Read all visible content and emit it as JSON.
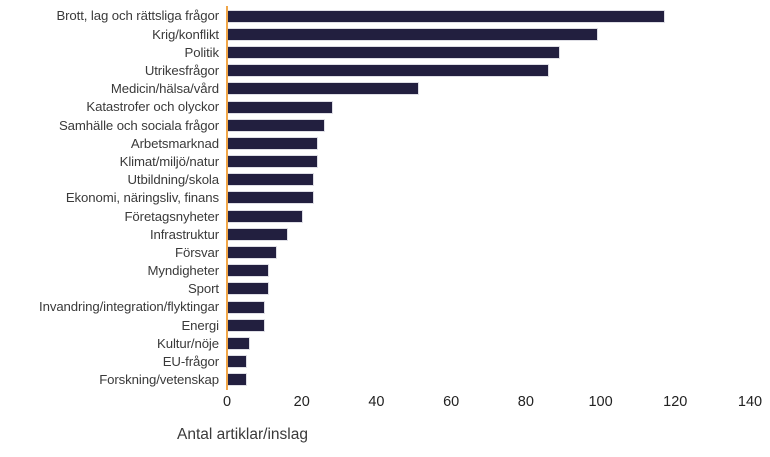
{
  "chart_data": {
    "type": "bar",
    "orientation": "horizontal",
    "title": "",
    "xlabel": "Antal artiklar/inslag",
    "ylabel": "",
    "categories": [
      "Brott, lag och rättsliga frågor",
      "Krig/konflikt",
      "Politik",
      "Utrikesfrågor",
      "Medicin/hälsa/vård",
      "Katastrofer och olyckor",
      "Samhälle och sociala frågor",
      "Arbetsmarknad",
      "Klimat/miljö/natur",
      "Utbildning/skola",
      "Ekonomi, näringsliv, finans",
      "Företagsnyheter",
      "Infrastruktur",
      "Försvar",
      "Myndigheter",
      "Sport",
      "Invandring/integration/flyktingar",
      "Energi",
      "Kultur/nöje",
      "EU-frågor",
      "Forskning/vetenskap"
    ],
    "values": [
      117,
      99,
      89,
      86,
      51,
      28,
      26,
      24,
      24,
      23,
      23,
      20,
      16,
      13,
      11,
      11,
      10,
      10,
      6,
      5,
      5
    ],
    "xlim": [
      0,
      140
    ],
    "xticks": [
      0,
      20,
      40,
      60,
      80,
      100,
      120,
      140
    ],
    "grid": false,
    "legend": "none",
    "colors": {
      "bar": "#221f3f",
      "axis_line": "#f0a649",
      "label_text": "#3a3a3a",
      "tick_text": "#222222"
    }
  }
}
